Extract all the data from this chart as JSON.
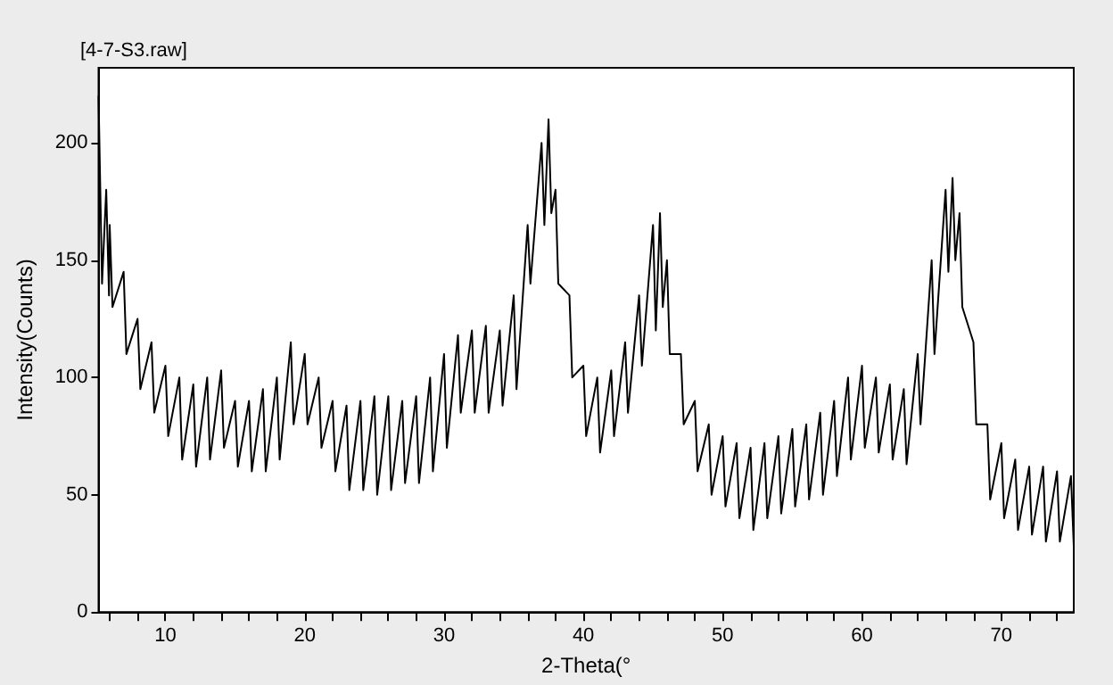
{
  "chart_data": {
    "type": "line",
    "title": "[4-7-S3.raw]",
    "xlabel": "2-Theta(°",
    "ylabel": "Intensity(Counts)",
    "xlim": [
      5.2,
      75.2
    ],
    "xticks": [
      {
        "value": 6,
        "label": null
      },
      {
        "value": 8,
        "label": null
      },
      10,
      {
        "value": 12,
        "label": null
      },
      {
        "value": 14,
        "label": null
      },
      {
        "value": 16,
        "label": null
      },
      {
        "value": 18,
        "label": null
      },
      20,
      {
        "value": 22,
        "label": null
      },
      {
        "value": 24,
        "label": null
      },
      {
        "value": 26,
        "label": null
      },
      {
        "value": 28,
        "label": null
      },
      30,
      {
        "value": 32,
        "label": null
      },
      {
        "value": 34,
        "label": null
      },
      {
        "value": 36,
        "label": null
      },
      {
        "value": 38,
        "label": null
      },
      40,
      {
        "value": 42,
        "label": null
      },
      {
        "value": 44,
        "label": null
      },
      {
        "value": 46,
        "label": null
      },
      {
        "value": 48,
        "label": null
      },
      50,
      {
        "value": 52,
        "label": null
      },
      {
        "value": 54,
        "label": null
      },
      {
        "value": 56,
        "label": null
      },
      {
        "value": 58,
        "label": null
      },
      60,
      {
        "value": 62,
        "label": null
      },
      {
        "value": 64,
        "label": null
      },
      {
        "value": 66,
        "label": null
      },
      {
        "value": 68,
        "label": null
      },
      70,
      {
        "value": 72,
        "label": null
      },
      {
        "value": 74,
        "label": null
      }
    ],
    "ylim": [
      0,
      232
    ],
    "yticks": [
      0,
      50,
      100,
      150,
      200
    ],
    "grid": false,
    "marker": "none",
    "line_style": "solid",
    "series": [
      {
        "color": "#000000",
        "x": [
          5.2,
          5.45,
          5.75,
          5.95,
          6,
          6.2,
          7,
          7.2,
          8,
          8.2,
          9,
          9.2,
          10,
          10.2,
          11,
          11.2,
          12,
          12.2,
          13,
          13.2,
          14,
          14.2,
          15,
          15.2,
          16,
          16.2,
          17,
          17.2,
          18,
          18.2,
          19,
          19.2,
          20,
          20.2,
          21,
          21.2,
          22,
          22.2,
          23,
          23.2,
          24,
          24.2,
          25,
          25.2,
          26,
          26.2,
          27,
          27.2,
          28,
          28.2,
          29,
          29.2,
          30,
          30.2,
          31,
          31.2,
          32,
          32.2,
          33,
          33.2,
          34,
          34.2,
          35,
          35.2,
          36,
          36.2,
          37,
          37.2,
          37.5,
          37.7,
          38,
          38.2,
          39,
          39.2,
          40,
          40.2,
          41,
          41.2,
          42,
          42.2,
          43,
          43.2,
          44,
          44.2,
          45,
          45.2,
          45.5,
          45.7,
          46,
          46.2,
          47,
          47.2,
          48,
          48.2,
          49,
          49.2,
          50,
          50.2,
          51,
          51.2,
          52,
          52.2,
          53,
          53.2,
          54,
          54.2,
          55,
          55.2,
          56,
          56.2,
          57,
          57.2,
          58,
          58.2,
          59,
          59.2,
          60,
          60.2,
          61,
          61.2,
          62,
          62.2,
          63,
          63.2,
          64,
          64.2,
          65,
          65.2,
          66,
          66.2,
          66.5,
          66.7,
          67,
          67.2,
          68,
          68.2,
          69,
          69.2,
          70,
          70.2,
          71,
          71.2,
          72,
          72.2,
          73,
          73.2,
          74,
          74.2,
          75,
          75.2
        ],
        "values": [
          220,
          140,
          180,
          135,
          165,
          130,
          145,
          110,
          125,
          95,
          115,
          85,
          105,
          75,
          100,
          65,
          97,
          62,
          100,
          65,
          103,
          70,
          90,
          62,
          90,
          60,
          95,
          60,
          100,
          65,
          115,
          80,
          110,
          80,
          100,
          70,
          90,
          60,
          88,
          52,
          90,
          52,
          92,
          50,
          92,
          52,
          90,
          55,
          92,
          55,
          100,
          60,
          110,
          70,
          118,
          85,
          120,
          85,
          122,
          85,
          120,
          88,
          135,
          95,
          165,
          140,
          200,
          165,
          210,
          170,
          180,
          140,
          135,
          100,
          105,
          75,
          100,
          68,
          103,
          75,
          115,
          85,
          135,
          105,
          165,
          120,
          170,
          130,
          150,
          110,
          110,
          80,
          90,
          60,
          80,
          50,
          75,
          45,
          72,
          40,
          70,
          35,
          72,
          40,
          75,
          42,
          78,
          45,
          80,
          48,
          85,
          50,
          90,
          58,
          100,
          65,
          105,
          70,
          100,
          68,
          97,
          65,
          95,
          63,
          110,
          80,
          150,
          110,
          180,
          145,
          185,
          150,
          170,
          130,
          115,
          80,
          80,
          48,
          72,
          40,
          65,
          35,
          62,
          33,
          62,
          30,
          60,
          30,
          58,
          28
        ]
      }
    ]
  }
}
